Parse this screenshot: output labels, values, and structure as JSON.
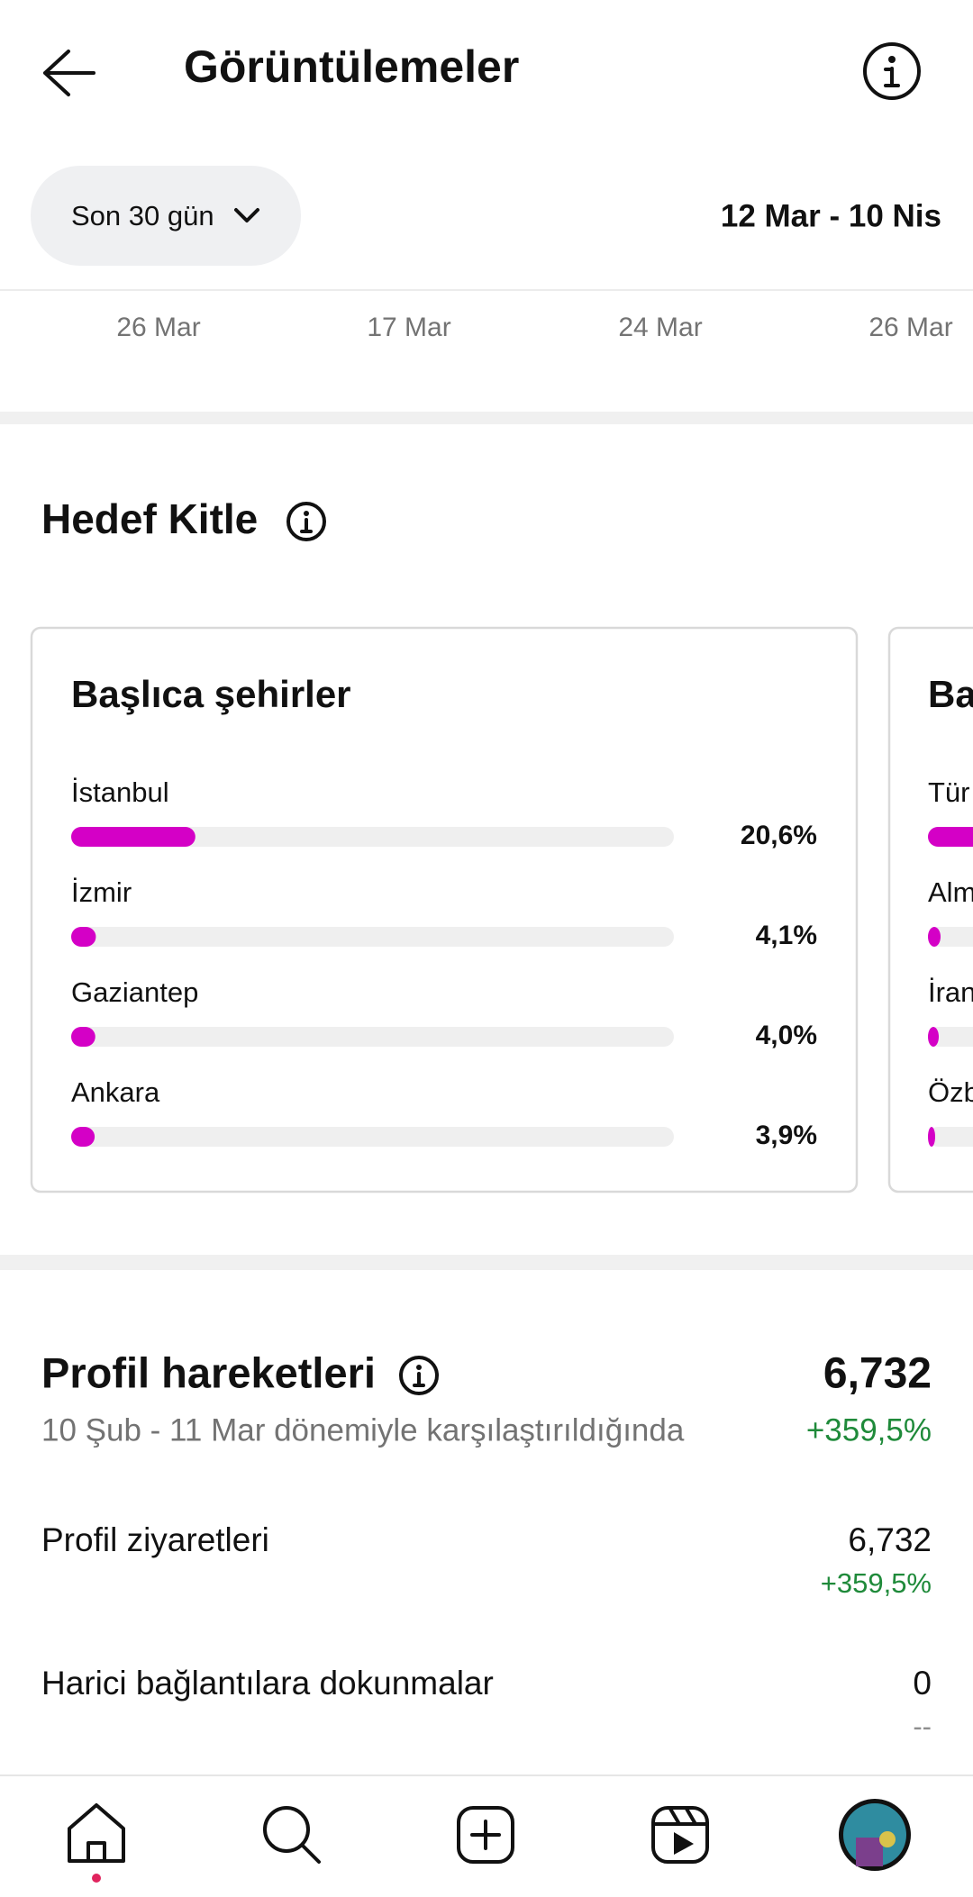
{
  "header": {
    "title": "Görüntülemeler"
  },
  "filter": {
    "period": "Son 30 gün",
    "date_range": "12 Mar - 10 Nis"
  },
  "timeline_labels": [
    "26 Mar",
    "17 Mar",
    "24 Mar",
    "26 Mar"
  ],
  "audience": {
    "title": "Hedef Kitle",
    "cities_card": {
      "title": "Başlıca şehirler",
      "rows": [
        {
          "name": "İstanbul",
          "value": 20.6,
          "label": "20,6%"
        },
        {
          "name": "İzmir",
          "value": 4.1,
          "label": "4,1%"
        },
        {
          "name": "Gaziantep",
          "value": 4.0,
          "label": "4,0%"
        },
        {
          "name": "Ankara",
          "value": 3.9,
          "label": "3,9%"
        }
      ]
    },
    "second_card": {
      "title": "Ba",
      "rows": [
        "Tür",
        "Alm",
        "İran",
        "Özb"
      ]
    }
  },
  "profile_activity": {
    "title": "Profil hareketleri",
    "total": "6,732",
    "change": "+359,5%",
    "comparison": "10 Şub - 11 Mar dönemiyle karşılaştırıldığında",
    "rows": [
      {
        "name": "Profil ziyaretleri",
        "value": "6,732",
        "change": "+359,5%"
      },
      {
        "name": "Harici bağlantılara dokunmalar",
        "value": "0",
        "change": "--"
      }
    ]
  }
}
